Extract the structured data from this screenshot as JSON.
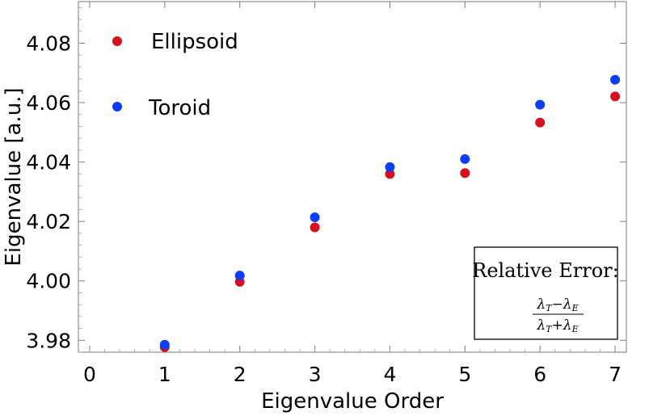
{
  "chart_data": {
    "type": "scatter",
    "xlabel": "Eigenvalue Order",
    "ylabel": "Eigenvalue [a.u.]",
    "xlim": [
      -0.15,
      7.15
    ],
    "ylim": [
      3.976,
      4.094
    ],
    "xticks": [
      0,
      1,
      2,
      3,
      4,
      5,
      6,
      7
    ],
    "yticks": [
      3.98,
      4.0,
      4.02,
      4.04,
      4.06,
      4.08
    ],
    "ytick_labels": [
      "3.98",
      "4.00",
      "4.02",
      "4.04",
      "4.06",
      "4.08"
    ],
    "grid": false,
    "legend_placement": "top-left",
    "series": [
      {
        "name": "Ellipsoid",
        "color": "#d7101e",
        "x": [
          1,
          2,
          3,
          4,
          5,
          6,
          7
        ],
        "y": [
          3.9777,
          3.9997,
          4.018,
          4.036,
          4.0363,
          4.0533,
          4.0621
        ]
      },
      {
        "name": "Toroid",
        "color": "#0b3ff5",
        "x": [
          1,
          2,
          3,
          4,
          5,
          6,
          7
        ],
        "y": [
          3.9785,
          4.0018,
          4.0214,
          4.0383,
          4.041,
          4.0593,
          4.0677
        ]
      }
    ],
    "annotation": {
      "title": "Relative Error:",
      "numerator": "λT−λE",
      "denominator": "λT+λE"
    }
  }
}
